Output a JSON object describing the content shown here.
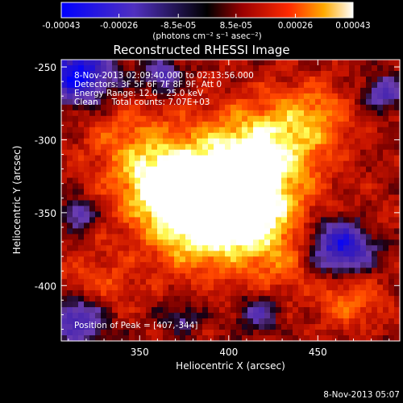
{
  "colorbar": {
    "tick_labels": [
      "-0.00043",
      "-0.00026",
      "-8.5e-05",
      "8.5e-05",
      "0.00026",
      "0.00043"
    ],
    "tick_values": [
      -0.00043,
      -0.00026,
      -8.5e-05,
      8.5e-05,
      0.00026,
      0.00043
    ],
    "range": [
      -0.00043,
      0.00043
    ],
    "units_label": "(photons cm⁻² s⁻¹ asec⁻²)"
  },
  "title": "Reconstructed RHESSI Image",
  "info": {
    "time_range": "8-Nov-2013 02:09:40.000 to 02:13:56.000",
    "detectors": "Detectors: 3F 5F 6F 7F 8F 9F, Att 0",
    "energy_range": "Energy Range: 12.0 - 25.0 keV",
    "algorithm": "Clean     Total counts: 7.07E+03"
  },
  "peak_label": "Position of Peak = [407,-344]",
  "peak_position": [
    407,
    -344
  ],
  "axes": {
    "x_label": "Heliocentric X (arcsec)",
    "y_label": "Heliocentric Y (arcsec)",
    "x_tick_labels": [
      "350",
      "400",
      "450"
    ],
    "x_ticks": [
      350,
      400,
      450
    ],
    "y_tick_labels": [
      "-250",
      "-300",
      "-350",
      "-400"
    ],
    "y_ticks": [
      -250,
      -300,
      -350,
      -400
    ],
    "x_range": [
      306,
      496
    ],
    "y_range": [
      -438,
      -245
    ]
  },
  "footer_timestamp": "8-Nov-2013 05:07",
  "colors": {
    "background": "#000000",
    "foreground": "#ffffff",
    "colormap": [
      "#0000ff",
      "#4020b0",
      "#6a3cb0",
      "#000000",
      "#990000",
      "#ee2200",
      "#ff8800",
      "#ffff40",
      "#ffffff"
    ]
  }
}
